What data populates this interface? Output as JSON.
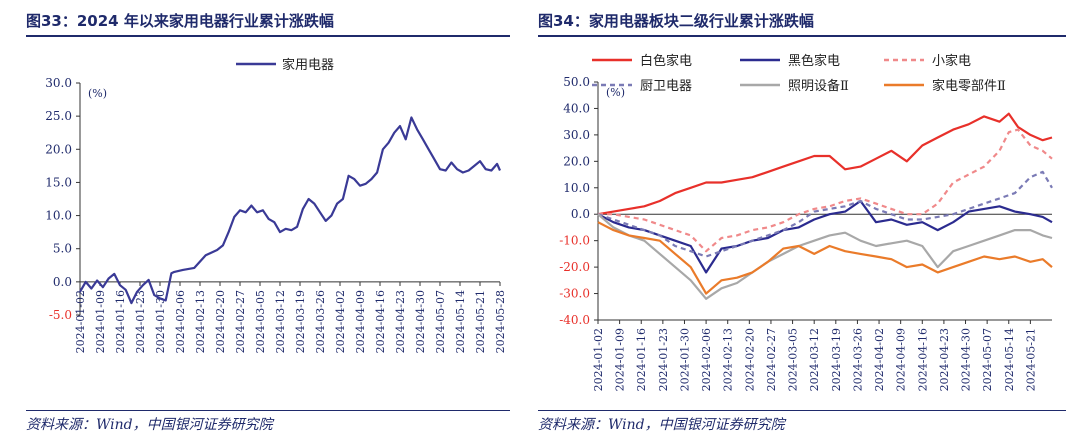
{
  "left": {
    "title": "图33：2024 年以来家用电器行业累计涨跌幅",
    "source": "资料来源：Wind，中国银河证券研究院",
    "chart_data": {
      "type": "line",
      "title": "图33：2024 年以来家用电器行业累计涨跌幅",
      "unit": "(%)",
      "ylim": [
        -5,
        30
      ],
      "yticks": [
        "30.0",
        "25.0",
        "20.0",
        "15.0",
        "10.0",
        "5.0",
        "0.0",
        "-5.0"
      ],
      "ytick_values": [
        30,
        25,
        20,
        15,
        10,
        5,
        0,
        -5
      ],
      "x_range": [
        0,
        104
      ],
      "xtick_labels": [
        "2024-01-02",
        "2024-01-09",
        "2024-01-16",
        "2024-01-23",
        "2024-01-30",
        "2024-02-06",
        "2024-02-13",
        "2024-02-20",
        "2024-02-27",
        "2024-03-05",
        "2024-03-12",
        "2024-03-19",
        "2024-03-26",
        "2024-04-02",
        "2024-04-09",
        "2024-04-16",
        "2024-04-23",
        "2024-04-30",
        "2024-05-07",
        "2024-05-14",
        "2024-05-21",
        "2024-05-28"
      ],
      "xtick_positions": [
        0,
        7,
        14,
        21,
        28,
        35,
        42,
        49,
        56,
        63,
        70,
        77,
        84,
        91,
        98,
        105,
        112,
        119,
        126,
        133,
        140,
        147
      ],
      "x_span": 147,
      "series": [
        {
          "name": "家用电器",
          "color": "#3a3a96",
          "x": [
            0,
            2,
            4,
            6,
            8,
            10,
            12,
            14,
            16,
            18,
            20,
            22,
            24,
            26,
            28,
            30,
            32,
            33,
            36,
            40,
            44,
            48,
            50,
            52,
            54,
            56,
            58,
            60,
            62,
            64,
            66,
            68,
            70,
            72,
            74,
            76,
            78,
            80,
            82,
            84,
            86,
            88,
            90,
            92,
            94,
            96,
            98,
            100,
            102,
            104,
            106,
            108,
            110,
            112,
            114,
            116,
            118,
            120,
            122,
            124,
            126,
            128,
            130,
            132,
            134,
            136,
            138,
            140,
            142,
            144,
            146,
            147
          ],
          "y": [
            -1.5,
            0.0,
            -1.0,
            0.2,
            -0.8,
            0.5,
            1.2,
            -0.5,
            -1.2,
            -3.2,
            -1.5,
            -0.5,
            0.3,
            -2.0,
            -2.5,
            -2.8,
            1.3,
            1.5,
            1.8,
            2.1,
            4.0,
            4.8,
            5.5,
            7.5,
            9.8,
            10.8,
            10.5,
            11.5,
            10.5,
            10.8,
            9.5,
            9.0,
            7.5,
            8.0,
            7.8,
            8.3,
            11.0,
            12.5,
            11.8,
            10.5,
            9.2,
            10.0,
            11.8,
            12.5,
            16.0,
            15.5,
            14.5,
            14.8,
            15.5,
            16.5,
            20.0,
            21.0,
            22.5,
            23.5,
            21.5,
            24.8,
            23.0,
            21.5,
            20.0,
            18.5,
            17.0,
            16.8,
            18.0,
            17.0,
            16.5,
            16.8,
            17.5,
            18.2,
            17.0,
            16.8,
            17.8,
            16.8
          ]
        }
      ]
    }
  },
  "right": {
    "title": "图34：家用电器板块二级行业累计涨跌幅",
    "source": "资料来源：Wind，中国银河证券研究院",
    "chart_data": {
      "type": "line",
      "title": "图34：家用电器板块二级行业累计涨跌幅",
      "unit": "(%)",
      "ylim": [
        -40,
        50
      ],
      "yticks": [
        "50.0",
        "40.0",
        "30.0",
        "20.0",
        "10.0",
        "0.0",
        "-10.0",
        "-20.0",
        "-30.0",
        "-40.0"
      ],
      "ytick_values": [
        50,
        40,
        30,
        20,
        10,
        0,
        -10,
        -20,
        -30,
        -40
      ],
      "xtick_labels": [
        "2024-01-02",
        "2024-01-09",
        "2024-01-16",
        "2024-01-23",
        "2024-01-30",
        "2024-02-06",
        "2024-02-13",
        "2024-02-20",
        "2024-02-27",
        "2024-03-05",
        "2024-03-12",
        "2024-03-19",
        "2024-03-26",
        "2024-04-02",
        "2024-04-09",
        "2024-04-16",
        "2024-04-23",
        "2024-04-30",
        "2024-05-07",
        "2024-05-14",
        "2024-05-21"
      ],
      "xtick_positions": [
        0,
        7,
        14,
        21,
        28,
        35,
        42,
        49,
        56,
        63,
        70,
        77,
        84,
        91,
        98,
        105,
        112,
        119,
        126,
        133,
        140
      ],
      "x_span": 147,
      "series": [
        {
          "name": "白色家电",
          "color": "#e8302a",
          "dash": "",
          "x": [
            0,
            5,
            10,
            15,
            20,
            25,
            30,
            35,
            40,
            45,
            50,
            55,
            60,
            65,
            70,
            75,
            80,
            85,
            90,
            95,
            100,
            105,
            110,
            115,
            120,
            125,
            130,
            133,
            136,
            140,
            144,
            147
          ],
          "y": [
            0,
            1,
            2,
            3,
            5,
            8,
            10,
            12,
            12,
            13,
            14,
            16,
            18,
            20,
            22,
            22,
            17,
            18,
            21,
            24,
            20,
            26,
            29,
            32,
            34,
            37,
            35,
            38,
            33,
            30,
            28,
            29
          ]
        },
        {
          "name": "黑色家电",
          "color": "#2b2b8f",
          "dash": "",
          "x": [
            0,
            5,
            10,
            15,
            20,
            25,
            30,
            35,
            40,
            45,
            50,
            55,
            60,
            65,
            70,
            75,
            80,
            85,
            90,
            95,
            100,
            105,
            110,
            115,
            120,
            125,
            130,
            135,
            140,
            144,
            147
          ],
          "y": [
            0,
            -3,
            -5,
            -6,
            -8,
            -10,
            -12,
            -22,
            -13,
            -12,
            -10,
            -9,
            -6,
            -5,
            -2,
            0,
            1,
            5,
            -3,
            -2,
            -4,
            -3,
            -6,
            -3,
            1,
            2,
            3,
            1,
            0,
            -1,
            -3
          ]
        },
        {
          "name": "小家电",
          "color": "#f0898a",
          "dash": "5,4",
          "x": [
            0,
            5,
            10,
            15,
            20,
            25,
            30,
            35,
            40,
            45,
            50,
            55,
            60,
            65,
            70,
            75,
            80,
            85,
            90,
            95,
            100,
            105,
            110,
            115,
            120,
            125,
            130,
            133,
            136,
            140,
            144,
            147
          ],
          "y": [
            0,
            0,
            -1,
            -2,
            -4,
            -6,
            -8,
            -14,
            -9,
            -8,
            -6,
            -5,
            -3,
            0,
            2,
            3,
            5,
            6,
            4,
            2,
            0,
            0,
            4,
            12,
            15,
            18,
            24,
            31,
            32,
            26,
            24,
            21
          ]
        },
        {
          "name": "厨卫电器",
          "color": "#7a7ab5",
          "dash": "5,4",
          "x": [
            0,
            5,
            10,
            15,
            20,
            25,
            30,
            35,
            40,
            45,
            50,
            55,
            60,
            65,
            70,
            75,
            80,
            85,
            90,
            95,
            100,
            105,
            110,
            115,
            120,
            125,
            130,
            135,
            140,
            144,
            147
          ],
          "y": [
            0,
            -2,
            -4,
            -6,
            -8,
            -12,
            -14,
            -16,
            -14,
            -12,
            -10,
            -8,
            -6,
            -3,
            1,
            2,
            3,
            5,
            2,
            0,
            -2,
            -2,
            -1,
            0,
            2,
            4,
            6,
            8,
            14,
            16,
            10
          ]
        },
        {
          "name": "照明设备Ⅱ",
          "color": "#a8a8a8",
          "dash": "",
          "x": [
            0,
            5,
            10,
            15,
            20,
            25,
            30,
            35,
            40,
            45,
            50,
            55,
            60,
            65,
            70,
            75,
            80,
            85,
            90,
            95,
            100,
            105,
            110,
            115,
            120,
            125,
            130,
            135,
            140,
            144,
            147
          ],
          "y": [
            0,
            -5,
            -8,
            -10,
            -15,
            -20,
            -25,
            -32,
            -28,
            -26,
            -22,
            -18,
            -15,
            -12,
            -10,
            -8,
            -7,
            -10,
            -12,
            -11,
            -10,
            -12,
            -20,
            -14,
            -12,
            -10,
            -8,
            -6,
            -6,
            -8,
            -9
          ]
        },
        {
          "name": "家电零部件Ⅱ",
          "color": "#ea7b2a",
          "dash": "",
          "x": [
            0,
            5,
            10,
            15,
            20,
            25,
            30,
            35,
            40,
            45,
            50,
            55,
            60,
            65,
            70,
            75,
            80,
            85,
            90,
            95,
            100,
            105,
            110,
            115,
            120,
            125,
            130,
            135,
            140,
            144,
            147
          ],
          "y": [
            -3,
            -6,
            -8,
            -9,
            -10,
            -15,
            -20,
            -30,
            -25,
            -24,
            -22,
            -18,
            -13,
            -12,
            -15,
            -12,
            -14,
            -15,
            -16,
            -17,
            -20,
            -19,
            -22,
            -20,
            -18,
            -16,
            -17,
            -16,
            -18,
            -17,
            -20
          ]
        }
      ]
    }
  }
}
